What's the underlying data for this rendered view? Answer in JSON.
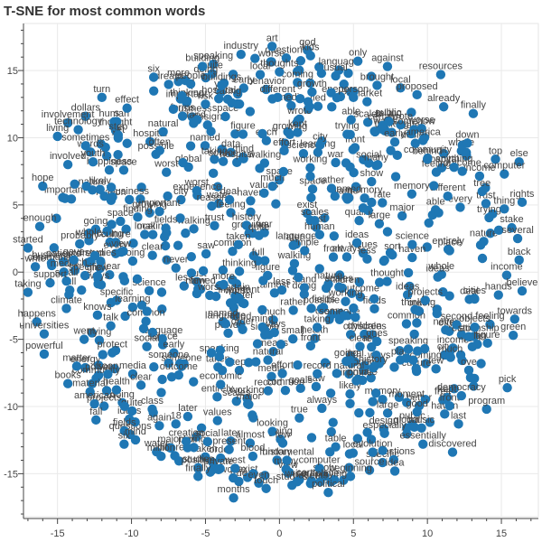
{
  "chart_data": {
    "type": "scatter",
    "title": "T-SNE for most common words",
    "xlabel": "",
    "ylabel": "",
    "xlim": [
      -17.3,
      17.5
    ],
    "ylim": [
      -18.2,
      18.5
    ],
    "x_ticks": [
      -15,
      -10,
      -5,
      0,
      5,
      10,
      15
    ],
    "y_ticks": [
      -15,
      -10,
      -5,
      0,
      5,
      10,
      15
    ],
    "grid": true,
    "marker_color": "#1f77b4",
    "label_color": "#444444",
    "labeled_points": [
      {
        "label": "art",
        "x": -0.5,
        "y": 16.8
      },
      {
        "label": "god",
        "x": 1.9,
        "y": 16.5
      },
      {
        "label": "kids",
        "x": 2.1,
        "y": 16.1
      },
      {
        "label": "industry",
        "x": -2.6,
        "y": 16.2
      },
      {
        "label": "only",
        "x": 5.3,
        "y": 15.7
      },
      {
        "label": "against",
        "x": 7.3,
        "y": 15.3
      },
      {
        "label": "resources",
        "x": 10.9,
        "y": 14.7
      },
      {
        "label": "six",
        "x": -8.5,
        "y": 14.5
      },
      {
        "label": "building",
        "x": -5.2,
        "y": 15.3
      },
      {
        "label": "people",
        "x": -6.0,
        "y": 14.0
      },
      {
        "label": "buildings",
        "x": -3.9,
        "y": 13.9
      },
      {
        "label": "local",
        "x": -1.3,
        "y": 14.7
      },
      {
        "label": "thoughts",
        "x": 0.0,
        "y": 14.9
      },
      {
        "label": "usual",
        "x": 3.8,
        "y": 14.6
      },
      {
        "label": "brought",
        "x": 6.6,
        "y": 13.9
      },
      {
        "label": "proposed",
        "x": 9.3,
        "y": 13.2
      },
      {
        "label": "turn",
        "x": -12.0,
        "y": 13.0
      },
      {
        "label": "effect",
        "x": -10.3,
        "y": 12.2
      },
      {
        "label": "risk",
        "x": -5.0,
        "y": 12.5
      },
      {
        "label": "growth",
        "x": 2.2,
        "y": 13.4
      },
      {
        "label": "person",
        "x": 5.0,
        "y": 13.0
      },
      {
        "label": "already",
        "x": 11.1,
        "y": 12.3
      },
      {
        "label": "finally",
        "x": 13.1,
        "y": 11.8
      },
      {
        "label": "dollars",
        "x": -13.1,
        "y": 11.6
      },
      {
        "label": "involvement",
        "x": -14.3,
        "y": 11.1
      },
      {
        "label": "technology",
        "x": -13.6,
        "y": 10.6
      },
      {
        "label": "s",
        "x": -11.0,
        "y": 11.2
      },
      {
        "label": "step",
        "x": -10.9,
        "y": 10.2
      },
      {
        "label": "telling",
        "x": 7.4,
        "y": 11.2
      },
      {
        "label": "somehow",
        "x": 9.1,
        "y": 10.6
      },
      {
        "label": "living",
        "x": -15.0,
        "y": 10.1
      },
      {
        "label": "sometimes",
        "x": -13.1,
        "y": 9.4
      },
      {
        "label": "down",
        "x": 12.7,
        "y": 9.6
      },
      {
        "label": "america",
        "x": 9.7,
        "y": 9.8
      },
      {
        "label": "happiness",
        "x": -11.5,
        "y": 7.6
      },
      {
        "label": "involved",
        "x": -14.3,
        "y": 8.0
      },
      {
        "label": "youth",
        "x": -12.6,
        "y": 8.2
      },
      {
        "label": "behind",
        "x": 10.0,
        "y": 8.4
      },
      {
        "label": "top",
        "x": 14.6,
        "y": 8.4
      },
      {
        "label": "else",
        "x": 16.2,
        "y": 8.2
      },
      {
        "label": "computer",
        "x": 15.2,
        "y": 7.3
      },
      {
        "label": "anything",
        "x": 11.8,
        "y": 7.8
      },
      {
        "label": "tree",
        "x": 13.7,
        "y": 6.0
      },
      {
        "label": "rights",
        "x": 16.4,
        "y": 5.2
      },
      {
        "label": "hope",
        "x": -16.0,
        "y": 6.4
      },
      {
        "label": "thing",
        "x": 15.2,
        "y": 4.7
      },
      {
        "label": "enough",
        "x": -16.2,
        "y": 3.4
      },
      {
        "label": "stake",
        "x": 15.7,
        "y": 3.3
      },
      {
        "label": "several",
        "x": 16.1,
        "y": 2.5
      },
      {
        "label": "started",
        "x": -17.0,
        "y": 1.8
      },
      {
        "label": "probably",
        "x": -13.5,
        "y": 2.1
      },
      {
        "label": "place",
        "x": 11.5,
        "y": 1.6
      },
      {
        "label": "black",
        "x": 16.2,
        "y": 0.9
      },
      {
        "label": "write",
        "x": -16.5,
        "y": 0.4
      },
      {
        "label": "gave",
        "x": -13.9,
        "y": 0.9
      },
      {
        "label": "grew",
        "x": -12.3,
        "y": -0.3
      },
      {
        "label": "taking",
        "x": -17.0,
        "y": -1.5
      },
      {
        "label": "support",
        "x": -15.5,
        "y": -0.8
      },
      {
        "label": "hands",
        "x": 14.8,
        "y": -1.7
      },
      {
        "label": "believe",
        "x": 16.4,
        "y": -1.4
      },
      {
        "label": "climate",
        "x": -14.4,
        "y": -2.7
      },
      {
        "label": "happens",
        "x": -16.4,
        "y": -3.7
      },
      {
        "label": "towards",
        "x": 15.9,
        "y": -3.5
      },
      {
        "label": "knows",
        "x": -12.3,
        "y": -3.2
      },
      {
        "label": "universities",
        "x": -15.9,
        "y": -4.6
      },
      {
        "label": "talk",
        "x": -11.4,
        "y": -4.0
      },
      {
        "label": "went",
        "x": -13.2,
        "y": -5.0
      },
      {
        "label": "objects",
        "x": 13.2,
        "y": -4.1
      },
      {
        "label": "green",
        "x": 15.8,
        "y": -4.7
      },
      {
        "label": "powerful",
        "x": -15.9,
        "y": -6.1
      },
      {
        "label": "protect",
        "x": -11.3,
        "y": -6.0
      },
      {
        "label": "matter",
        "x": -13.7,
        "y": -7.0
      },
      {
        "label": "soon",
        "x": -11.6,
        "y": -7.6
      },
      {
        "label": "ove",
        "x": 12.8,
        "y": -7.3
      },
      {
        "label": "books",
        "x": -14.3,
        "y": -8.3
      },
      {
        "label": "pick",
        "x": 15.4,
        "y": -8.6
      },
      {
        "label": "material",
        "x": -12.8,
        "y": -8.9
      },
      {
        "label": "american",
        "x": -12.5,
        "y": -9.8
      },
      {
        "label": "democracy",
        "x": 12.3,
        "y": -9.2
      },
      {
        "label": "class",
        "x": -8.6,
        "y": -10.2
      },
      {
        "label": "moment",
        "x": 8.6,
        "y": -9.7
      },
      {
        "label": "program",
        "x": 14.0,
        "y": -10.2
      },
      {
        "label": "fall",
        "x": -12.4,
        "y": -11.0
      },
      {
        "label": "good",
        "x": 9.3,
        "y": -10.4
      },
      {
        "label": "18",
        "x": -7.0,
        "y": -11.3
      },
      {
        "label": "music",
        "x": 9.6,
        "y": -11.6
      },
      {
        "label": "last",
        "x": 12.1,
        "y": -11.3
      },
      {
        "label": "especially",
        "x": 7.1,
        "y": -12.0
      },
      {
        "label": "six",
        "x": -10.5,
        "y": -12.8
      },
      {
        "label": "creation",
        "x": -6.3,
        "y": -12.6
      },
      {
        "label": "present",
        "x": -3.4,
        "y": -13.2
      },
      {
        "label": "essentially",
        "x": 9.7,
        "y": -12.8
      },
      {
        "label": "million",
        "x": -8.0,
        "y": -13.7
      },
      {
        "label": "blood",
        "x": -1.8,
        "y": -13.7
      },
      {
        "label": "table",
        "x": 3.8,
        "y": -13.0
      },
      {
        "label": "evolution",
        "x": 6.3,
        "y": -13.4
      },
      {
        "label": "discovered",
        "x": 11.7,
        "y": -13.4
      },
      {
        "label": "positive",
        "x": -5.5,
        "y": -14.6
      },
      {
        "label": "west",
        "x": -3.0,
        "y": -14.6
      },
      {
        "label": "fundamental",
        "x": 0.5,
        "y": -14.0
      },
      {
        "label": "idea",
        "x": 7.8,
        "y": -14.8
      },
      {
        "label": "finally",
        "x": -5.5,
        "y": -15.2
      },
      {
        "label": "beginning",
        "x": 4.8,
        "y": -15.2
      },
      {
        "label": "computer",
        "x": 2.7,
        "y": -14.6
      },
      {
        "label": "even",
        "x": -1.4,
        "y": -15.7
      },
      {
        "label": "touch",
        "x": -0.9,
        "y": -16.1
      },
      {
        "label": "writer",
        "x": 1.2,
        "y": -15.6
      },
      {
        "label": "playing",
        "x": 3.5,
        "y": -15.6
      },
      {
        "label": "political",
        "x": 3.3,
        "y": -16.4
      },
      {
        "label": "months",
        "x": -3.1,
        "y": -16.8
      }
    ],
    "background_labels": [
      "finding",
      "quality",
      "rate",
      "named",
      "saw",
      "haven",
      "show",
      "taken",
      "tied",
      "ideas",
      "forms",
      "walking",
      "ones",
      "stand",
      "relationship",
      "nature",
      "yet",
      "front",
      "exist",
      "reason",
      "someone",
      "hospital",
      "plan",
      "doing",
      "deal",
      "projects",
      "fields",
      "kept",
      "income",
      "words",
      "space",
      "cities",
      "business",
      "order",
      "second",
      "city",
      "wrote",
      "memory",
      "record",
      "caring",
      "outcome",
      "children",
      "source",
      "effort",
      "questions",
      "trust",
      "dream",
      "entirely",
      "scales",
      "behavior",
      "speaking",
      "power",
      "worst",
      "coming",
      "looking",
      "economic",
      "clear",
      "water",
      "health",
      "growing",
      "patients",
      "sort",
      "mind",
      "figure",
      "goals",
      "social",
      "studies",
      "story",
      "media",
      "values",
      "culture",
      "means",
      "system",
      "community",
      "language",
      "history",
      "energy",
      "experience",
      "learning",
      "market",
      "war",
      "science",
      "design",
      "design",
      "model",
      "data",
      "view",
      "ways",
      "whole",
      "public",
      "private",
      "large",
      "small",
      "different",
      "important",
      "certain",
      "simple",
      "common",
      "specific",
      "human",
      "natural",
      "global",
      "local",
      "major",
      "free",
      "full",
      "real",
      "true",
      "able",
      "likely",
      "possible",
      "early",
      "later",
      "again",
      "better",
      "worse",
      "quite",
      "rather",
      "almost",
      "always",
      "never",
      "often",
      "every",
      "each",
      "many",
      "much",
      "most",
      "more",
      "less",
      "few",
      "thought",
      "thinking",
      "feeling",
      "working",
      "trying",
      "making",
      "taking",
      "going"
    ]
  }
}
